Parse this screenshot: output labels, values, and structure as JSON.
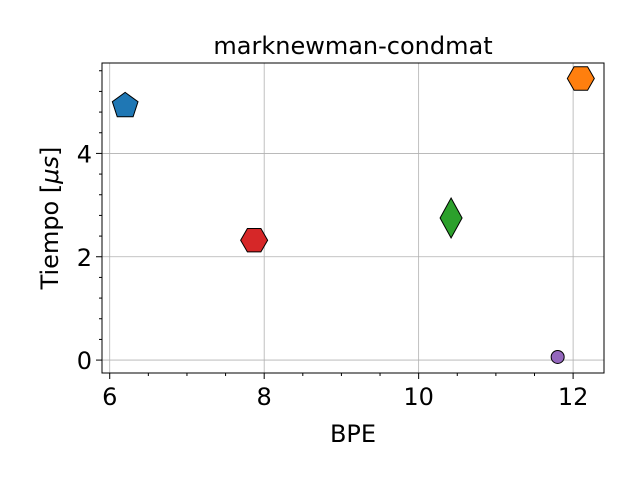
{
  "chart_data": {
    "type": "scatter",
    "title": "marknewman-condmat",
    "xlabel": "BPE",
    "ylabel": "Tiempo [μs]",
    "xlim": [
      5.9,
      12.4
    ],
    "ylim": [
      -0.25,
      5.75
    ],
    "xticks": [
      6,
      8,
      10,
      12
    ],
    "yticks": [
      0,
      2,
      4
    ],
    "xticks_minor": [
      6.5,
      7,
      7.5,
      8.5,
      9,
      9.5,
      10.5,
      11,
      11.5
    ],
    "yticks_minor": [
      0.4,
      0.8,
      1.2,
      1.6,
      2.4,
      2.8,
      3.2,
      3.6,
      4.4,
      4.8,
      5.2,
      5.6
    ],
    "grid": true,
    "points": [
      {
        "x": 6.2,
        "y": 4.92,
        "marker": "pentagon",
        "color": "#1f77b4"
      },
      {
        "x": 12.1,
        "y": 5.45,
        "marker": "hexagon",
        "color": "#ff7f0e"
      },
      {
        "x": 10.42,
        "y": 2.75,
        "marker": "diamond",
        "color": "#2ca02c"
      },
      {
        "x": 7.87,
        "y": 2.32,
        "marker": "hexagon",
        "color": "#d62728"
      },
      {
        "x": 11.8,
        "y": 0.06,
        "marker": "circle",
        "color": "#9467bd"
      }
    ]
  }
}
